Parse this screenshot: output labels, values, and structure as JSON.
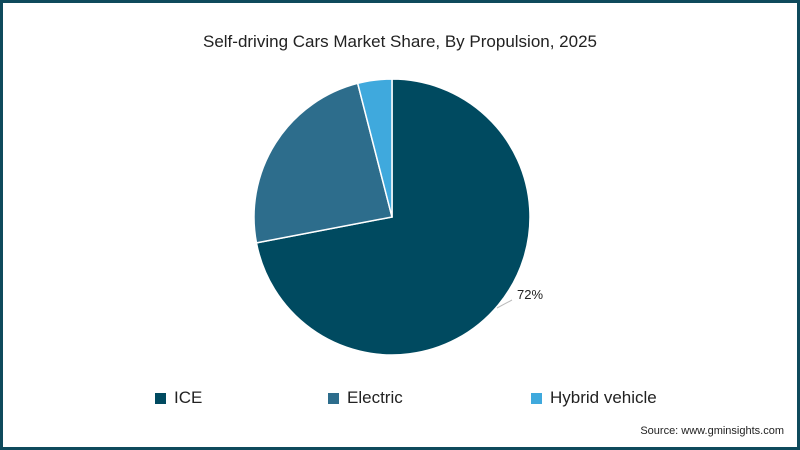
{
  "title": "Self-driving Cars Market Share, By Propulsion, 2025",
  "source": "Source: www.gminsights.com",
  "legend": [
    {
      "label": "ICE",
      "color": "#004a60"
    },
    {
      "label": "Electric",
      "color": "#2d6d8c"
    },
    {
      "label": "Hybrid vehicle",
      "color": "#3fa9dd"
    }
  ],
  "data_label": "72%",
  "chart_data": {
    "type": "pie",
    "title": "Self-driving Cars Market Share, By Propulsion, 2025",
    "categories": [
      "ICE",
      "Electric",
      "Hybrid vehicle"
    ],
    "values": [
      72,
      24,
      4
    ],
    "colors": [
      "#004a60",
      "#2d6d8c",
      "#3fa9dd"
    ],
    "data_labels": {
      "ICE": "72%"
    },
    "legend_position": "bottom"
  }
}
